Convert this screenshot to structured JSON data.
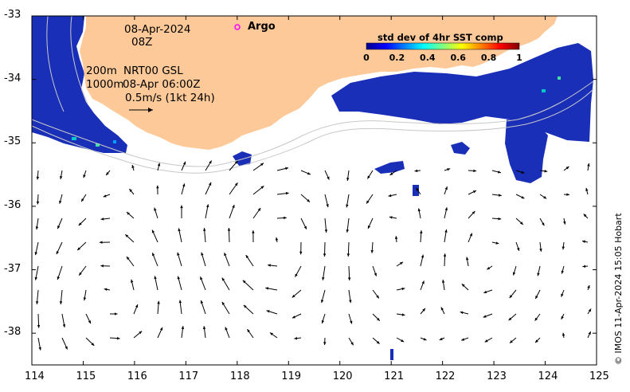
{
  "map": {
    "date": "08-Apr-2024",
    "hour": "08Z",
    "argo_label": "Argo",
    "contour_200": "200m",
    "contour_1000": "1000m",
    "product": "NRT00 GSL",
    "product_time": "08-Apr 06:00Z",
    "scale_label": "0.5m/s (1kt 24h)",
    "credit": "© IMOS 11-Apr-2024 15:05 Hobart",
    "land_color": "#fdc998",
    "argo_color": "#ff00ff"
  },
  "colorbar": {
    "title": "std dev of 4hr SST comp",
    "ticks": [
      "0",
      "0.2",
      "0.4",
      "0.6",
      "0.8",
      "1"
    ],
    "colors": [
      "#00008f",
      "#0000ff",
      "#0080ff",
      "#00ffff",
      "#80ff80",
      "#ffff00",
      "#ff8000",
      "#ff0000",
      "#800000"
    ]
  },
  "axes": {
    "x_ticks": [
      "114",
      "115",
      "116",
      "117",
      "118",
      "119",
      "120",
      "121",
      "122",
      "123",
      "124",
      "125"
    ],
    "y_ticks": [
      "-33",
      "-34",
      "-35",
      "-36",
      "-37",
      "-38"
    ],
    "lon_range": [
      114,
      125
    ],
    "lat_range": [
      -38.5,
      -33
    ]
  }
}
